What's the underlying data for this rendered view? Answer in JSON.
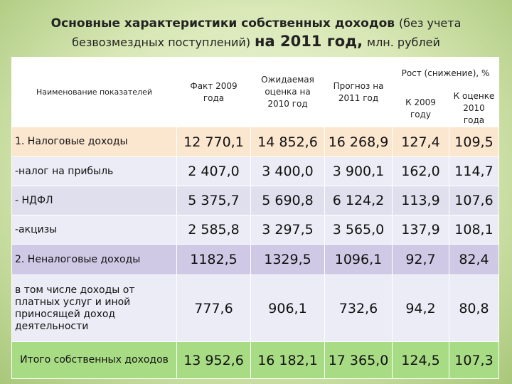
{
  "title": {
    "line1_main": "Основные характеристики собственных доходов",
    "line1_small": "(без учета",
    "line2_small": "безвозмездных поступлений)",
    "line2_big": "на 2011 год,",
    "line2_unit": "млн. рублей"
  },
  "headers": {
    "name": "Наименование показателей",
    "fact": "Факт 2009 года",
    "expected": "Ожидаемая оценка на 2010 год",
    "forecast": "Прогноз на 2011 год",
    "growth": "Рост (снижение), %",
    "to2009": "К 2009 году",
    "to2010": "К оценке 2010 года"
  },
  "rows": [
    {
      "label": "1. Налоговые доходы",
      "fact": "12 770,1",
      "expected": "14 852,6",
      "forecast": "16 268,9",
      "to2009": "127,4",
      "to2010": "109,5"
    },
    {
      "label": "-налог на прибыль",
      "fact": "2 407,0",
      "expected": "3 400,0",
      "forecast": "3 900,1",
      "to2009": "162,0",
      "to2010": "114,7"
    },
    {
      "label": "- НДФЛ",
      "fact": "5 375,7",
      "expected": "5 690,8",
      "forecast": "6 124,2",
      "to2009": "113,9",
      "to2010": "107,6"
    },
    {
      "label": "-акцизы",
      "fact": "2 585,8",
      "expected": "3 297,5",
      "forecast": "3 565,0",
      "to2009": "137,9",
      "to2010": "108,1"
    },
    {
      "label": "2. Неналоговые доходы",
      "fact": "1182,5",
      "expected": "1329,5",
      "forecast": "1096,1",
      "to2009": "92,7",
      "to2010": "82,4"
    },
    {
      "label": "в том числе доходы от платных услуг и иной приносящей доход деятельности",
      "fact": "777,6",
      "expected": "906,1",
      "forecast": "732,6",
      "to2009": "94,2",
      "to2010": "80,8"
    },
    {
      "label": "Итого собственных доходов",
      "fact": "13 952,6",
      "expected": "16 182,1",
      "forecast": "17 365,0",
      "to2009": "124,5",
      "to2010": "107,3"
    }
  ]
}
